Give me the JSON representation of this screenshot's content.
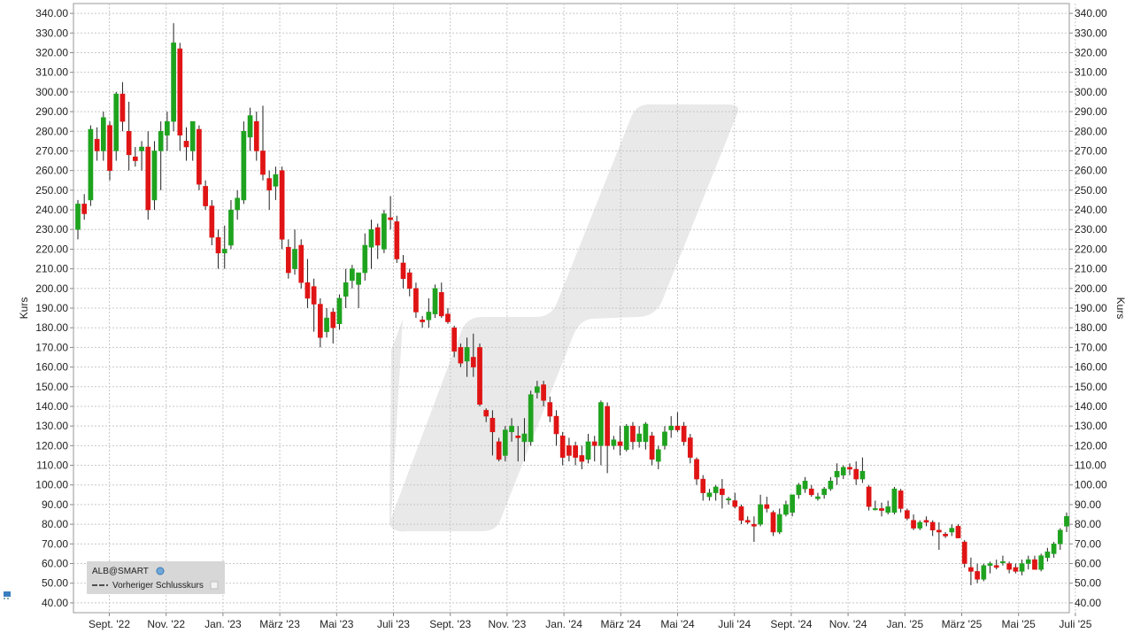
{
  "chart_data": {
    "type": "candlestick",
    "title": "",
    "y_axis_title_left": "Kurs",
    "y_axis_title_right": "Kurs",
    "ylim": [
      35,
      345
    ],
    "y_ticks": [
      40,
      50,
      60,
      70,
      80,
      90,
      100,
      110,
      120,
      130,
      140,
      150,
      160,
      170,
      180,
      190,
      200,
      210,
      220,
      230,
      240,
      250,
      260,
      270,
      280,
      290,
      300,
      310,
      320,
      330,
      340
    ],
    "x_ticks": [
      "Sept. '22",
      "Nov. '22",
      "Jan. '23",
      "März '23",
      "Mai '23",
      "Juli '23",
      "Sept. '23",
      "Nov. '23",
      "Jan. '24",
      "März '24",
      "Mai '24",
      "Juli '24",
      "Sept. '24",
      "Nov. '24",
      "Jan. '25",
      "März '25",
      "Mai '25",
      "Juli '25"
    ],
    "grid": true,
    "legend_position": "bottom-left",
    "legend": {
      "symbol": "ALB@SMART",
      "prev_close_label": "Vorheriger Schlusskurs"
    },
    "colors": {
      "up": "#1fa31f",
      "down": "#e01414",
      "grid": "#c8c8c8",
      "watermark": "#e9e9e9"
    },
    "candles": [
      {
        "o": 230,
        "h": 245,
        "l": 225,
        "c": 243
      },
      {
        "o": 243,
        "h": 248,
        "l": 235,
        "c": 238
      },
      {
        "o": 245,
        "h": 283,
        "l": 242,
        "c": 281
      },
      {
        "o": 276,
        "h": 282,
        "l": 265,
        "c": 270
      },
      {
        "o": 270,
        "h": 290,
        "l": 265,
        "c": 287
      },
      {
        "o": 283,
        "h": 285,
        "l": 255,
        "c": 260
      },
      {
        "o": 270,
        "h": 300,
        "l": 265,
        "c": 299
      },
      {
        "o": 299,
        "h": 305,
        "l": 280,
        "c": 285
      },
      {
        "o": 280,
        "h": 295,
        "l": 260,
        "c": 268
      },
      {
        "o": 267,
        "h": 272,
        "l": 262,
        "c": 265
      },
      {
        "o": 270,
        "h": 275,
        "l": 260,
        "c": 272
      },
      {
        "o": 272,
        "h": 280,
        "l": 235,
        "c": 240
      },
      {
        "o": 245,
        "h": 275,
        "l": 240,
        "c": 270
      },
      {
        "o": 270,
        "h": 285,
        "l": 250,
        "c": 280
      },
      {
        "o": 278,
        "h": 290,
        "l": 270,
        "c": 285
      },
      {
        "o": 285,
        "h": 335,
        "l": 280,
        "c": 325
      },
      {
        "o": 322,
        "h": 325,
        "l": 270,
        "c": 278
      },
      {
        "o": 275,
        "h": 282,
        "l": 265,
        "c": 272
      },
      {
        "o": 270,
        "h": 285,
        "l": 265,
        "c": 285
      },
      {
        "o": 281,
        "h": 283,
        "l": 250,
        "c": 253
      },
      {
        "o": 252,
        "h": 255,
        "l": 240,
        "c": 242
      },
      {
        "o": 242,
        "h": 245,
        "l": 222,
        "c": 226
      },
      {
        "o": 226,
        "h": 230,
        "l": 210,
        "c": 218
      },
      {
        "o": 218,
        "h": 232,
        "l": 210,
        "c": 220
      },
      {
        "o": 222,
        "h": 245,
        "l": 220,
        "c": 240
      },
      {
        "o": 240,
        "h": 250,
        "l": 235,
        "c": 246
      },
      {
        "o": 245,
        "h": 285,
        "l": 243,
        "c": 280
      },
      {
        "o": 277,
        "h": 292,
        "l": 270,
        "c": 288
      },
      {
        "o": 285,
        "h": 290,
        "l": 265,
        "c": 270
      },
      {
        "o": 270,
        "h": 293,
        "l": 255,
        "c": 258
      },
      {
        "o": 256,
        "h": 260,
        "l": 240,
        "c": 250
      },
      {
        "o": 252,
        "h": 262,
        "l": 245,
        "c": 258
      },
      {
        "o": 260,
        "h": 262,
        "l": 220,
        "c": 225
      },
      {
        "o": 221,
        "h": 225,
        "l": 205,
        "c": 208
      },
      {
        "o": 210,
        "h": 230,
        "l": 207,
        "c": 220
      },
      {
        "o": 222,
        "h": 225,
        "l": 200,
        "c": 203
      },
      {
        "o": 203,
        "h": 215,
        "l": 190,
        "c": 195
      },
      {
        "o": 201,
        "h": 205,
        "l": 178,
        "c": 192
      },
      {
        "o": 192,
        "h": 195,
        "l": 170,
        "c": 175
      },
      {
        "o": 178,
        "h": 190,
        "l": 175,
        "c": 185
      },
      {
        "o": 188,
        "h": 190,
        "l": 172,
        "c": 180
      },
      {
        "o": 182,
        "h": 197,
        "l": 179,
        "c": 195
      },
      {
        "o": 196,
        "h": 210,
        "l": 190,
        "c": 203
      },
      {
        "o": 204,
        "h": 212,
        "l": 200,
        "c": 210
      },
      {
        "o": 202,
        "h": 208,
        "l": 190,
        "c": 208
      },
      {
        "o": 208,
        "h": 228,
        "l": 204,
        "c": 222
      },
      {
        "o": 221,
        "h": 235,
        "l": 210,
        "c": 230
      },
      {
        "o": 231,
        "h": 233,
        "l": 215,
        "c": 222
      },
      {
        "o": 220,
        "h": 240,
        "l": 218,
        "c": 238
      },
      {
        "o": 236,
        "h": 247,
        "l": 230,
        "c": 235
      },
      {
        "o": 234,
        "h": 237,
        "l": 213,
        "c": 215
      },
      {
        "o": 213,
        "h": 217,
        "l": 200,
        "c": 205
      },
      {
        "o": 208,
        "h": 210,
        "l": 196,
        "c": 200
      },
      {
        "o": 200,
        "h": 203,
        "l": 185,
        "c": 188
      },
      {
        "o": 184,
        "h": 186,
        "l": 180,
        "c": 183
      },
      {
        "o": 184,
        "h": 195,
        "l": 180,
        "c": 188
      },
      {
        "o": 187,
        "h": 202,
        "l": 185,
        "c": 200
      },
      {
        "o": 198,
        "h": 203,
        "l": 185,
        "c": 186
      },
      {
        "o": 187,
        "h": 190,
        "l": 182,
        "c": 183
      },
      {
        "o": 180,
        "h": 181,
        "l": 165,
        "c": 168
      },
      {
        "o": 170,
        "h": 172,
        "l": 160,
        "c": 162
      },
      {
        "o": 163,
        "h": 175,
        "l": 155,
        "c": 170
      },
      {
        "o": 165,
        "h": 177,
        "l": 155,
        "c": 160
      },
      {
        "o": 170,
        "h": 172,
        "l": 140,
        "c": 141
      },
      {
        "o": 138,
        "h": 139,
        "l": 132,
        "c": 135
      },
      {
        "o": 134,
        "h": 138,
        "l": 115,
        "c": 127
      },
      {
        "o": 122,
        "h": 124,
        "l": 112,
        "c": 113
      },
      {
        "o": 115,
        "h": 130,
        "l": 112,
        "c": 128
      },
      {
        "o": 127,
        "h": 134,
        "l": 122,
        "c": 130
      },
      {
        "o": 125,
        "h": 130,
        "l": 112,
        "c": 124
      },
      {
        "o": 122,
        "h": 134,
        "l": 112,
        "c": 126
      },
      {
        "o": 122,
        "h": 148,
        "l": 120,
        "c": 146
      },
      {
        "o": 147,
        "h": 153,
        "l": 144,
        "c": 150
      },
      {
        "o": 151,
        "h": 153,
        "l": 140,
        "c": 143
      },
      {
        "o": 142,
        "h": 145,
        "l": 132,
        "c": 135
      },
      {
        "o": 135,
        "h": 138,
        "l": 120,
        "c": 126
      },
      {
        "o": 125,
        "h": 127,
        "l": 110,
        "c": 114
      },
      {
        "o": 120,
        "h": 124,
        "l": 112,
        "c": 115
      },
      {
        "o": 120,
        "h": 122,
        "l": 110,
        "c": 114
      },
      {
        "o": 115,
        "h": 120,
        "l": 108,
        "c": 112
      },
      {
        "o": 113,
        "h": 126,
        "l": 111,
        "c": 122
      },
      {
        "o": 122,
        "h": 125,
        "l": 112,
        "c": 120
      },
      {
        "o": 120,
        "h": 143,
        "l": 110,
        "c": 142
      },
      {
        "o": 140,
        "h": 142,
        "l": 106,
        "c": 120
      },
      {
        "o": 120,
        "h": 125,
        "l": 118,
        "c": 123
      },
      {
        "o": 122,
        "h": 130,
        "l": 115,
        "c": 120
      },
      {
        "o": 118,
        "h": 131,
        "l": 117,
        "c": 130
      },
      {
        "o": 130,
        "h": 132,
        "l": 118,
        "c": 122
      },
      {
        "o": 122,
        "h": 130,
        "l": 119,
        "c": 126
      },
      {
        "o": 122,
        "h": 132,
        "l": 118,
        "c": 131
      },
      {
        "o": 125,
        "h": 127,
        "l": 110,
        "c": 113
      },
      {
        "o": 112,
        "h": 120,
        "l": 108,
        "c": 118
      },
      {
        "o": 120,
        "h": 130,
        "l": 118,
        "c": 127
      },
      {
        "o": 128,
        "h": 135,
        "l": 124,
        "c": 130
      },
      {
        "o": 130,
        "h": 137,
        "l": 127,
        "c": 128
      },
      {
        "o": 130,
        "h": 132,
        "l": 120,
        "c": 122
      },
      {
        "o": 124,
        "h": 126,
        "l": 111,
        "c": 114
      },
      {
        "o": 113,
        "h": 114,
        "l": 100,
        "c": 103
      },
      {
        "o": 103,
        "h": 105,
        "l": 92,
        "c": 96
      },
      {
        "o": 94,
        "h": 98,
        "l": 92,
        "c": 96
      },
      {
        "o": 96,
        "h": 100,
        "l": 92,
        "c": 99
      },
      {
        "o": 98,
        "h": 103,
        "l": 88,
        "c": 95
      },
      {
        "o": 93,
        "h": 94,
        "l": 90,
        "c": 93
      },
      {
        "o": 92,
        "h": 96,
        "l": 88,
        "c": 89
      },
      {
        "o": 89,
        "h": 90,
        "l": 80,
        "c": 82
      },
      {
        "o": 82,
        "h": 84,
        "l": 80,
        "c": 81
      },
      {
        "o": 80,
        "h": 84,
        "l": 71,
        "c": 79
      },
      {
        "o": 80,
        "h": 95,
        "l": 79,
        "c": 90
      },
      {
        "o": 90,
        "h": 94,
        "l": 86,
        "c": 88
      },
      {
        "o": 86,
        "h": 87,
        "l": 74,
        "c": 76
      },
      {
        "o": 76,
        "h": 88,
        "l": 75,
        "c": 85
      },
      {
        "o": 85,
        "h": 92,
        "l": 84,
        "c": 90
      },
      {
        "o": 86,
        "h": 95,
        "l": 84,
        "c": 95
      },
      {
        "o": 95,
        "h": 101,
        "l": 93,
        "c": 100
      },
      {
        "o": 98,
        "h": 104,
        "l": 96,
        "c": 102
      },
      {
        "o": 98,
        "h": 100,
        "l": 94,
        "c": 95
      },
      {
        "o": 93,
        "h": 96,
        "l": 92,
        "c": 94
      },
      {
        "o": 95,
        "h": 99,
        "l": 93,
        "c": 98
      },
      {
        "o": 98,
        "h": 104,
        "l": 97,
        "c": 102
      },
      {
        "o": 104,
        "h": 111,
        "l": 100,
        "c": 107
      },
      {
        "o": 105,
        "h": 110,
        "l": 103,
        "c": 109
      },
      {
        "o": 109,
        "h": 111,
        "l": 105,
        "c": 108
      },
      {
        "o": 108,
        "h": 112,
        "l": 100,
        "c": 103
      },
      {
        "o": 103,
        "h": 114,
        "l": 101,
        "c": 107
      },
      {
        "o": 99,
        "h": 100,
        "l": 87,
        "c": 89
      },
      {
        "o": 88,
        "h": 92,
        "l": 87,
        "c": 88
      },
      {
        "o": 88,
        "h": 91,
        "l": 84,
        "c": 87
      },
      {
        "o": 86,
        "h": 92,
        "l": 85,
        "c": 89
      },
      {
        "o": 86,
        "h": 99,
        "l": 85,
        "c": 98
      },
      {
        "o": 97,
        "h": 98,
        "l": 86,
        "c": 88
      },
      {
        "o": 87,
        "h": 88,
        "l": 82,
        "c": 83
      },
      {
        "o": 82,
        "h": 85,
        "l": 77,
        "c": 78
      },
      {
        "o": 78,
        "h": 82,
        "l": 77,
        "c": 81
      },
      {
        "o": 82,
        "h": 84,
        "l": 79,
        "c": 81
      },
      {
        "o": 81,
        "h": 82,
        "l": 74,
        "c": 77
      },
      {
        "o": 77,
        "h": 81,
        "l": 67,
        "c": 76
      },
      {
        "o": 75,
        "h": 76,
        "l": 73,
        "c": 74
      },
      {
        "o": 76,
        "h": 80,
        "l": 74,
        "c": 78
      },
      {
        "o": 79,
        "h": 80,
        "l": 73,
        "c": 73
      },
      {
        "o": 71,
        "h": 72,
        "l": 58,
        "c": 60
      },
      {
        "o": 58,
        "h": 63,
        "l": 49,
        "c": 56
      },
      {
        "o": 56,
        "h": 60,
        "l": 50,
        "c": 52
      },
      {
        "o": 52,
        "h": 60,
        "l": 51,
        "c": 59
      },
      {
        "o": 59,
        "h": 61,
        "l": 55,
        "c": 60
      },
      {
        "o": 59,
        "h": 62,
        "l": 57,
        "c": 58
      },
      {
        "o": 61,
        "h": 64,
        "l": 59,
        "c": 61
      },
      {
        "o": 60,
        "h": 61,
        "l": 55,
        "c": 57
      },
      {
        "o": 58,
        "h": 60,
        "l": 55,
        "c": 56
      },
      {
        "o": 56,
        "h": 62,
        "l": 54,
        "c": 60
      },
      {
        "o": 60,
        "h": 64,
        "l": 57,
        "c": 62
      },
      {
        "o": 62,
        "h": 64,
        "l": 57,
        "c": 57
      },
      {
        "o": 57,
        "h": 65,
        "l": 56,
        "c": 64
      },
      {
        "o": 63,
        "h": 68,
        "l": 61,
        "c": 66
      },
      {
        "o": 65,
        "h": 71,
        "l": 63,
        "c": 70
      },
      {
        "o": 70,
        "h": 78,
        "l": 67,
        "c": 77
      },
      {
        "o": 79,
        "h": 86,
        "l": 76,
        "c": 84
      }
    ]
  }
}
